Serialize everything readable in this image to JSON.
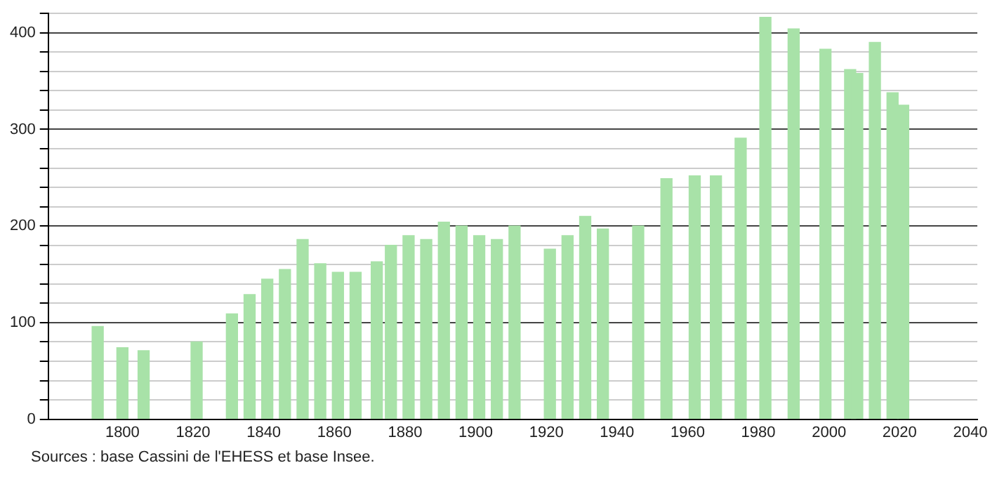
{
  "chart_data": {
    "type": "bar",
    "x": [
      1793,
      1800,
      1806,
      1821,
      1831,
      1836,
      1841,
      1846,
      1851,
      1856,
      1861,
      1866,
      1872,
      1876,
      1881,
      1886,
      1891,
      1896,
      1901,
      1906,
      1911,
      1921,
      1926,
      1931,
      1936,
      1946,
      1954,
      1962,
      1968,
      1975,
      1982,
      1990,
      1999,
      2006,
      2008,
      2013,
      2018,
      2021
    ],
    "values": [
      96,
      74,
      71,
      80,
      109,
      129,
      145,
      155,
      186,
      161,
      152,
      152,
      163,
      180,
      190,
      186,
      204,
      200,
      190,
      186,
      200,
      176,
      190,
      210,
      197,
      200,
      249,
      252,
      252,
      291,
      416,
      404,
      383,
      362,
      358,
      390,
      338,
      325
    ],
    "color": "#a8e2a8",
    "xlim": [
      1779,
      2042
    ],
    "xticks": [
      1800,
      1820,
      1840,
      1860,
      1880,
      1900,
      1920,
      1940,
      1960,
      1980,
      2000,
      2020,
      2040
    ],
    "ylim": [
      0,
      420
    ],
    "yticks": [
      0,
      {
        "value": 20,
        "label": null
      },
      {
        "value": 40,
        "label": null
      },
      {
        "value": 60,
        "label": null
      },
      {
        "value": 80,
        "label": null
      },
      100,
      {
        "value": 120,
        "label": null
      },
      {
        "value": 140,
        "label": null
      },
      {
        "value": 160,
        "label": null
      },
      {
        "value": 180,
        "label": null
      },
      200,
      {
        "value": 220,
        "label": null
      },
      {
        "value": 240,
        "label": null
      },
      {
        "value": 260,
        "label": null
      },
      {
        "value": 280,
        "label": null
      },
      300,
      {
        "value": 320,
        "label": null
      },
      {
        "value": 340,
        "label": null
      },
      {
        "value": 360,
        "label": null
      },
      {
        "value": 380,
        "label": null
      },
      400,
      {
        "value": 420,
        "label": null
      }
    ],
    "grid": "y",
    "legend": false,
    "annotations": [
      "Sources : base Cassini de l'EHESS et base Insee."
    ]
  }
}
